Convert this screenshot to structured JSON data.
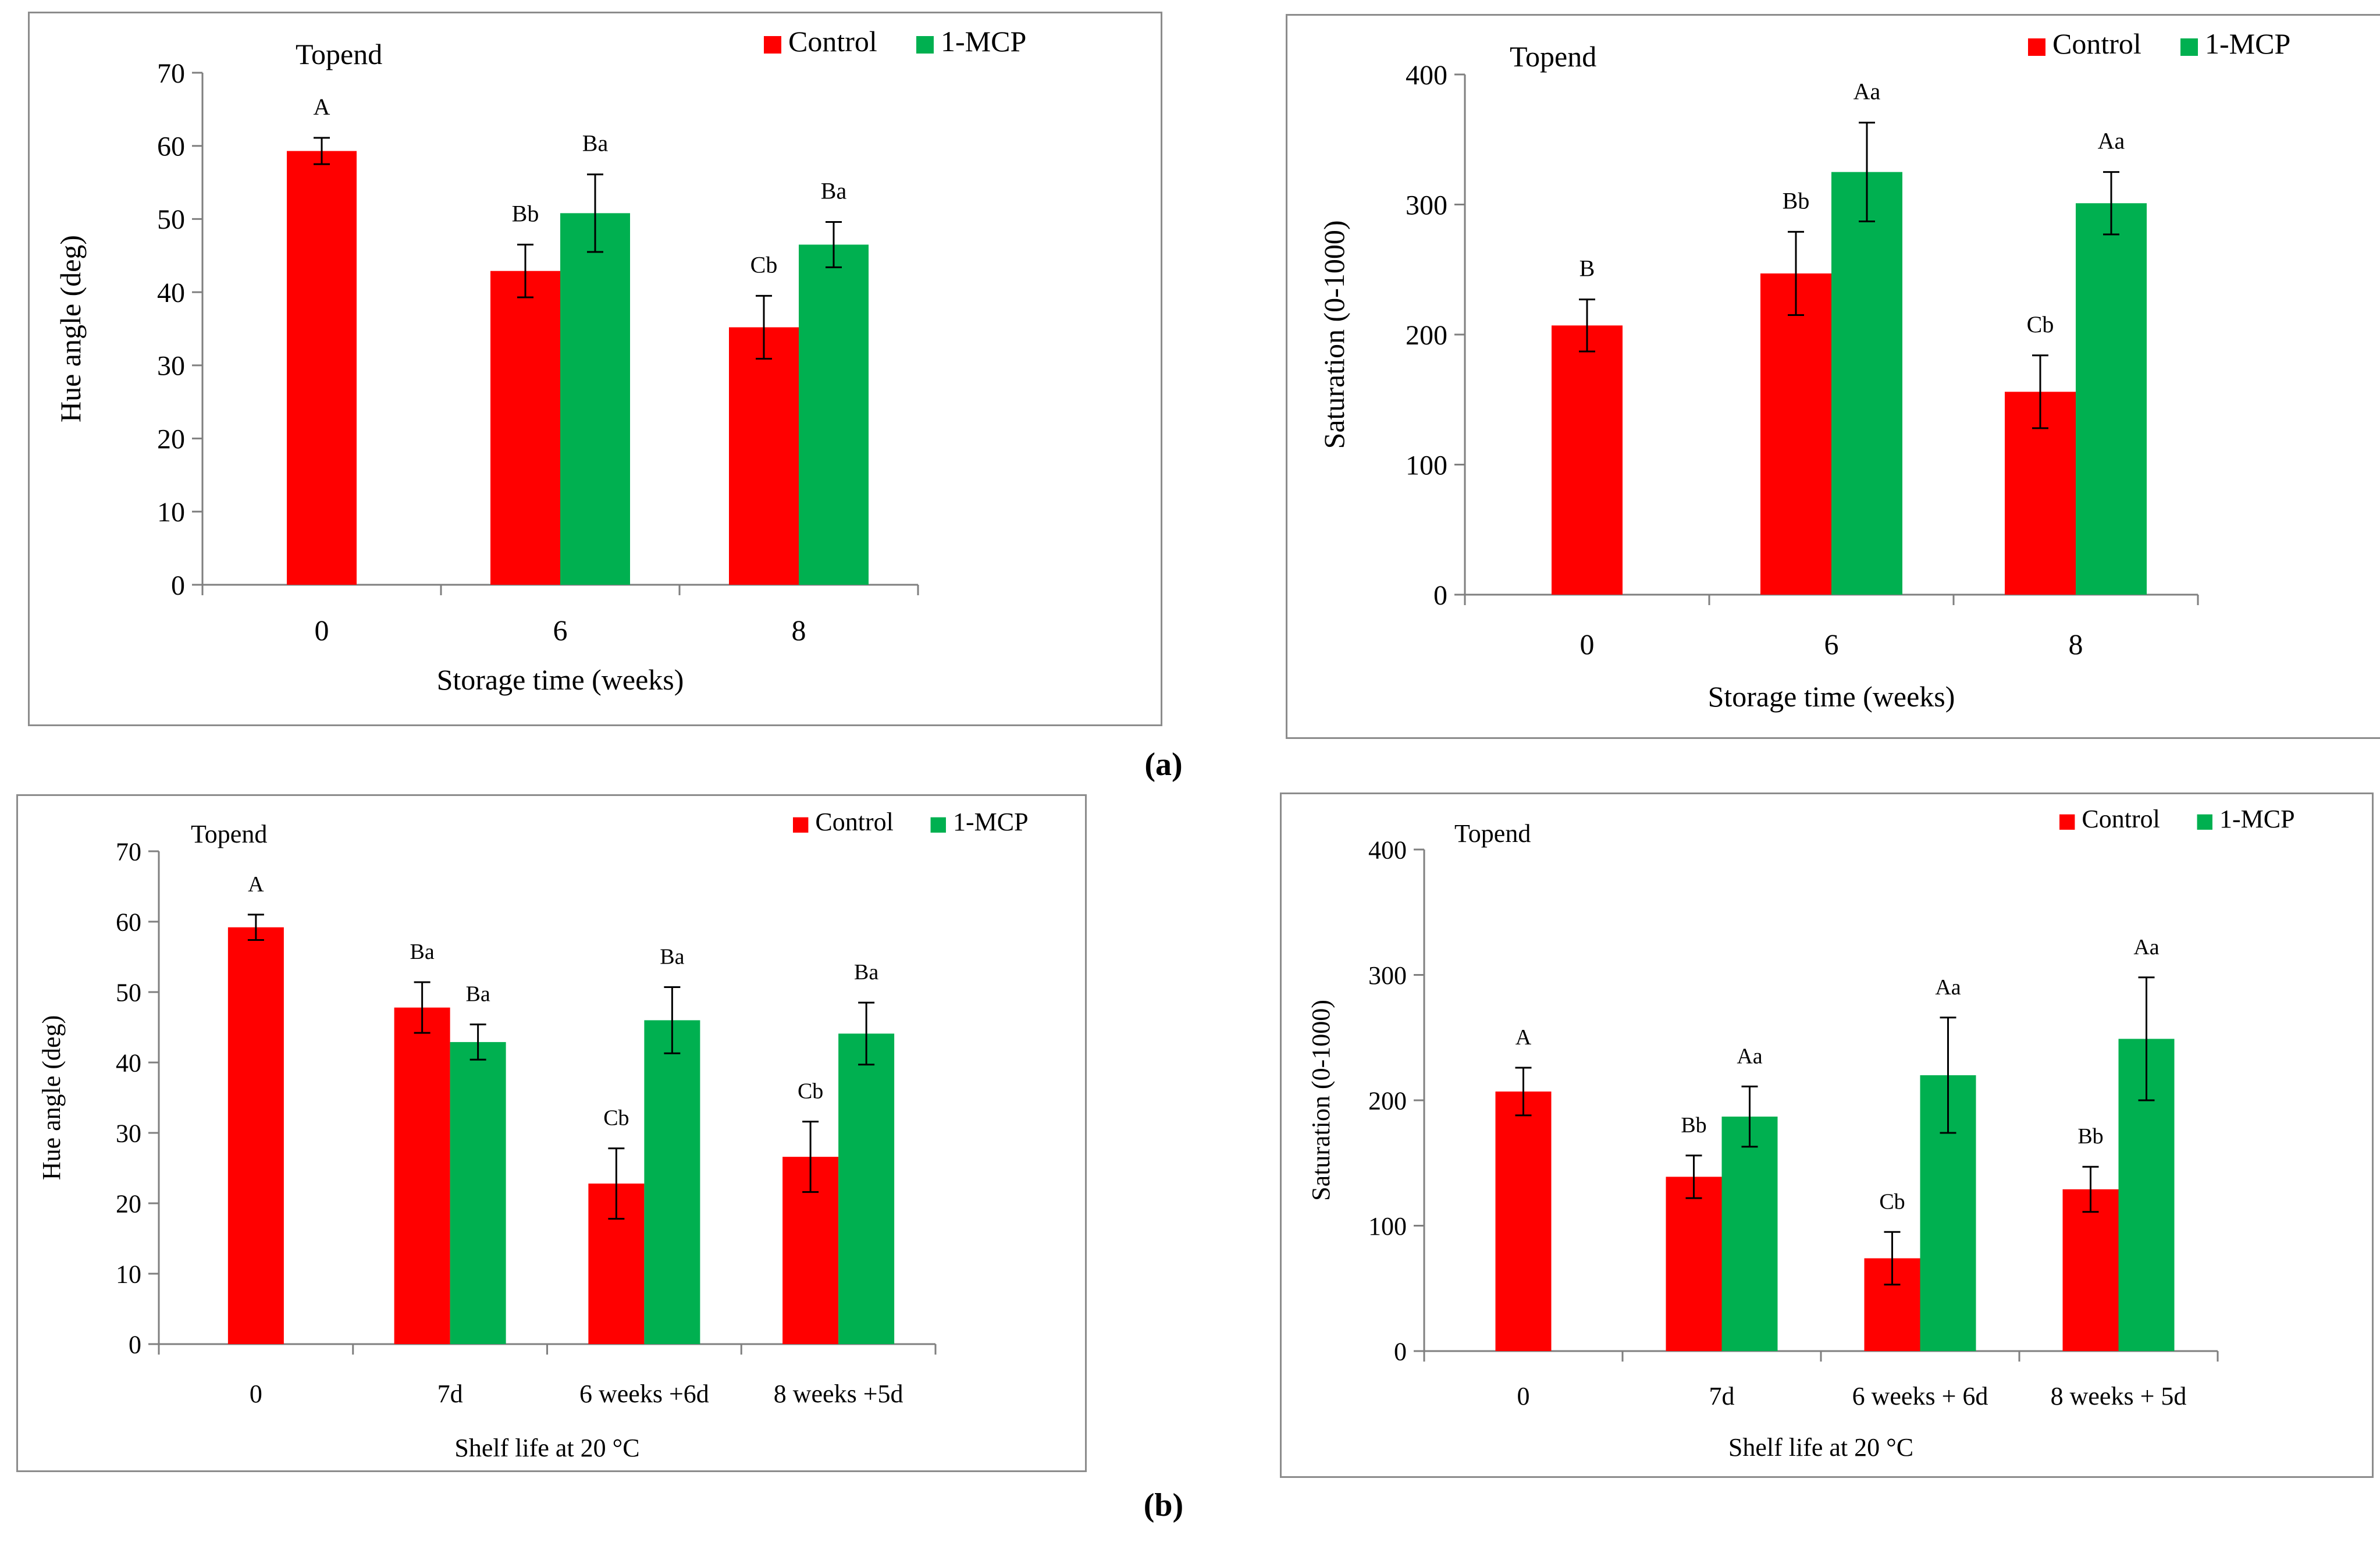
{
  "labels": {
    "a": "(a)",
    "b": "(b)"
  },
  "colors": {
    "control": "#ff0000",
    "mcp": "#00b050",
    "frame": "#8c8c8c",
    "axis": "#7f7f7f"
  },
  "chart_data": [
    {
      "type": "bar",
      "title": "Topend",
      "xlabel": "Storage time (weeks)",
      "ylabel": "Hue angle (deg)",
      "ylim": [
        0,
        70
      ],
      "yticks": [
        0,
        10,
        20,
        30,
        40,
        50,
        60,
        70
      ],
      "categories": [
        "0",
        "6",
        "8"
      ],
      "legend": {
        "position": "top-right",
        "entries": [
          "Control",
          "1-MCP"
        ]
      },
      "series": [
        {
          "name": "Control",
          "values": [
            59.3,
            42.9,
            35.2
          ],
          "errors": [
            1.8,
            3.6,
            4.3
          ],
          "letters": [
            "A",
            "Bb",
            "Cb"
          ]
        },
        {
          "name": "1-MCP",
          "values": [
            null,
            50.8,
            46.5
          ],
          "errors": [
            null,
            5.3,
            3.1
          ],
          "letters": [
            null,
            "Ba",
            "Ba"
          ]
        }
      ]
    },
    {
      "type": "bar",
      "title": "Topend",
      "xlabel": "Storage time (weeks)",
      "ylabel": "Saturation (0-1000)",
      "ylim": [
        0,
        400
      ],
      "yticks": [
        0,
        100,
        200,
        300,
        400
      ],
      "categories": [
        "0",
        "6",
        "8"
      ],
      "legend": {
        "position": "top-right",
        "entries": [
          "Control",
          "1-MCP"
        ]
      },
      "series": [
        {
          "name": "Control",
          "values": [
            207,
            247,
            156
          ],
          "errors": [
            20,
            32,
            28
          ],
          "letters": [
            "B",
            "Bb",
            "Cb"
          ]
        },
        {
          "name": "1-MCP",
          "values": [
            null,
            325,
            301
          ],
          "errors": [
            null,
            38,
            24
          ],
          "letters": [
            null,
            "Aa",
            "Aa"
          ]
        }
      ]
    },
    {
      "type": "bar",
      "title": "Topend",
      "xlabel": "Shelf life at 20 °C",
      "ylabel": "Hue angle (deg)",
      "ylim": [
        0,
        70
      ],
      "yticks": [
        0,
        10,
        20,
        30,
        40,
        50,
        60,
        70
      ],
      "categories": [
        "0",
        "7d",
        "6 weeks +6d",
        "8 weeks +5d"
      ],
      "legend": {
        "position": "top-right",
        "entries": [
          "Control",
          "1-MCP"
        ]
      },
      "series": [
        {
          "name": "Control",
          "values": [
            59.2,
            47.8,
            22.8,
            26.6
          ],
          "errors": [
            1.8,
            3.6,
            5.0,
            5.0
          ],
          "letters": [
            "A",
            "Ba",
            "Cb",
            "Cb"
          ]
        },
        {
          "name": "1-MCP",
          "values": [
            null,
            42.9,
            46.0,
            44.1
          ],
          "errors": [
            null,
            2.5,
            4.7,
            4.4
          ],
          "letters": [
            null,
            "Ba",
            "Ba",
            "Ba"
          ]
        }
      ]
    },
    {
      "type": "bar",
      "title": "Topend",
      "xlabel": "Shelf life at 20 °C",
      "ylabel": "Saturation (0-1000)",
      "ylim": [
        0,
        400
      ],
      "yticks": [
        0,
        100,
        200,
        300,
        400
      ],
      "categories": [
        "0",
        "7d",
        "6 weeks + 6d",
        "8 weeks + 5d"
      ],
      "legend": {
        "position": "top-right",
        "entries": [
          "Control",
          "1-MCP"
        ]
      },
      "series": [
        {
          "name": "Control",
          "values": [
            207,
            139,
            74,
            129
          ],
          "errors": [
            19,
            17,
            21,
            18
          ],
          "letters": [
            "A",
            "Bb",
            "Cb",
            "Bb"
          ]
        },
        {
          "name": "1-MCP",
          "values": [
            null,
            187,
            220,
            249
          ],
          "errors": [
            null,
            24,
            46,
            49
          ],
          "letters": [
            null,
            "Aa",
            "Aa",
            "Aa"
          ]
        }
      ]
    }
  ]
}
